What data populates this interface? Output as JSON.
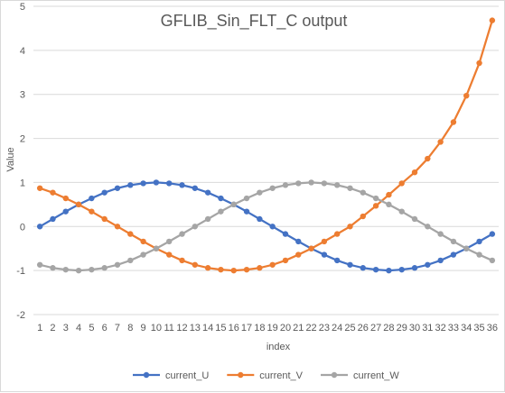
{
  "chart_data": {
    "type": "line",
    "title": "GFLIB_Sin_FLT_C output",
    "xlabel": "index",
    "ylabel": "Value",
    "ylim": [
      -2,
      5
    ],
    "yticks": [
      -2,
      -1,
      0,
      1,
      2,
      3,
      4,
      5
    ],
    "grid": true,
    "legend_position": "bottom",
    "x": [
      1,
      2,
      3,
      4,
      5,
      6,
      7,
      8,
      9,
      10,
      11,
      12,
      13,
      14,
      15,
      16,
      17,
      18,
      19,
      20,
      21,
      22,
      23,
      24,
      25,
      26,
      27,
      28,
      29,
      30,
      31,
      32,
      33,
      34,
      35,
      36
    ],
    "series": [
      {
        "name": "current_U",
        "color": "#4472c4",
        "values": [
          0.0,
          0.17,
          0.34,
          0.5,
          0.64,
          0.77,
          0.87,
          0.94,
          0.98,
          1.0,
          0.98,
          0.94,
          0.87,
          0.77,
          0.64,
          0.5,
          0.34,
          0.17,
          0.0,
          -0.17,
          -0.34,
          -0.5,
          -0.64,
          -0.77,
          -0.87,
          -0.94,
          -0.98,
          -1.0,
          -0.98,
          -0.94,
          -0.87,
          -0.77,
          -0.64,
          -0.5,
          -0.34,
          -0.17
        ]
      },
      {
        "name": "current_V",
        "color": "#ed7d31",
        "values": [
          0.87,
          0.77,
          0.64,
          0.5,
          0.34,
          0.17,
          0.0,
          -0.17,
          -0.34,
          -0.5,
          -0.64,
          -0.77,
          -0.87,
          -0.94,
          -0.98,
          -1.0,
          -0.98,
          -0.94,
          -0.87,
          -0.77,
          -0.64,
          -0.5,
          -0.34,
          -0.17,
          0.0,
          0.23,
          0.47,
          0.72,
          0.98,
          1.23,
          1.54,
          1.92,
          2.37,
          2.97,
          3.71,
          4.68
        ]
      },
      {
        "name": "current_W",
        "color": "#a5a5a5",
        "values": [
          -0.87,
          -0.94,
          -0.98,
          -1.0,
          -0.98,
          -0.94,
          -0.87,
          -0.77,
          -0.64,
          -0.5,
          -0.34,
          -0.17,
          0.0,
          0.17,
          0.34,
          0.5,
          0.64,
          0.77,
          0.87,
          0.94,
          0.98,
          1.0,
          0.98,
          0.94,
          0.87,
          0.77,
          0.64,
          0.5,
          0.34,
          0.17,
          0.0,
          -0.17,
          -0.34,
          -0.5,
          -0.64,
          -0.77
        ]
      }
    ]
  }
}
